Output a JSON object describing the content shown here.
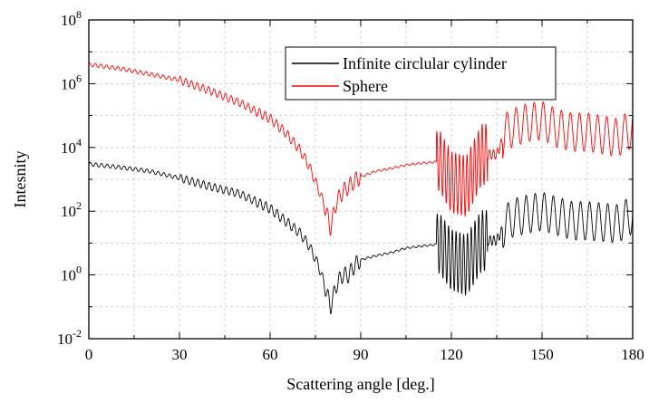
{
  "chart_data": {
    "type": "line",
    "title": "",
    "xlabel": "Scattering angle [deg.]",
    "ylabel": "Intesnity",
    "xlim": [
      0,
      180
    ],
    "ylim": [
      0.01,
      100000000
    ],
    "yscale": "log",
    "grid": true,
    "legend_position": "top-right",
    "x_ticks": [
      {
        "value": 0,
        "label": "0"
      },
      {
        "value": 30,
        "label": "30"
      },
      {
        "value": 60,
        "label": "60"
      },
      {
        "value": 90,
        "label": "90"
      },
      {
        "value": 120,
        "label": "120"
      },
      {
        "value": 150,
        "label": "150"
      },
      {
        "value": 180,
        "label": "180"
      }
    ],
    "y_ticks": [
      {
        "value": 0.01,
        "base": "10",
        "exp": "-2"
      },
      {
        "value": 1,
        "base": "10",
        "exp": "0"
      },
      {
        "value": 100,
        "base": "10",
        "exp": "2"
      },
      {
        "value": 10000,
        "base": "10",
        "exp": "4"
      },
      {
        "value": 1000000,
        "base": "10",
        "exp": "6"
      },
      {
        "value": 100000000,
        "base": "10",
        "exp": "8"
      }
    ],
    "series": [
      {
        "name": "Infinite circlular cylinder",
        "color": "#000000",
        "x": [
          0,
          10,
          20,
          30,
          40,
          50,
          60,
          65,
          70,
          73,
          76,
          78,
          80,
          82,
          84,
          86,
          88,
          90,
          95,
          100,
          105,
          110,
          115,
          116,
          120,
          125,
          130,
          132,
          135,
          138,
          140,
          145,
          150,
          155,
          160,
          165,
          170,
          175,
          180
        ],
        "y": [
          3000,
          2400,
          1800,
          1100,
          600,
          350,
          120,
          50,
          20,
          8,
          2,
          0.5,
          0.1,
          0.5,
          1,
          1,
          2,
          3,
          4,
          5,
          7,
          8,
          9,
          10,
          3,
          2,
          12,
          12,
          12,
          40,
          60,
          80,
          100,
          70,
          50,
          50,
          45,
          40,
          80
        ]
      },
      {
        "name": "Sphere",
        "color": "#ff0000",
        "x": [
          0,
          10,
          20,
          30,
          40,
          50,
          60,
          65,
          70,
          73,
          76,
          78,
          80,
          82,
          84,
          86,
          88,
          90,
          95,
          100,
          105,
          110,
          115,
          116,
          120,
          125,
          130,
          132,
          135,
          138,
          140,
          145,
          150,
          155,
          160,
          165,
          170,
          175,
          180
        ],
        "y": [
          4000000,
          3000000,
          2000000,
          1300000,
          600000,
          250000,
          80000,
          30000,
          8000,
          2500,
          500,
          150,
          30,
          200,
          400,
          600,
          900,
          1200,
          1800,
          2200,
          2800,
          3200,
          3500,
          4000,
          800,
          600,
          6000,
          6000,
          6000,
          30000,
          40000,
          60000,
          70000,
          40000,
          30000,
          30000,
          25000,
          20000,
          40000
        ]
      }
    ]
  }
}
